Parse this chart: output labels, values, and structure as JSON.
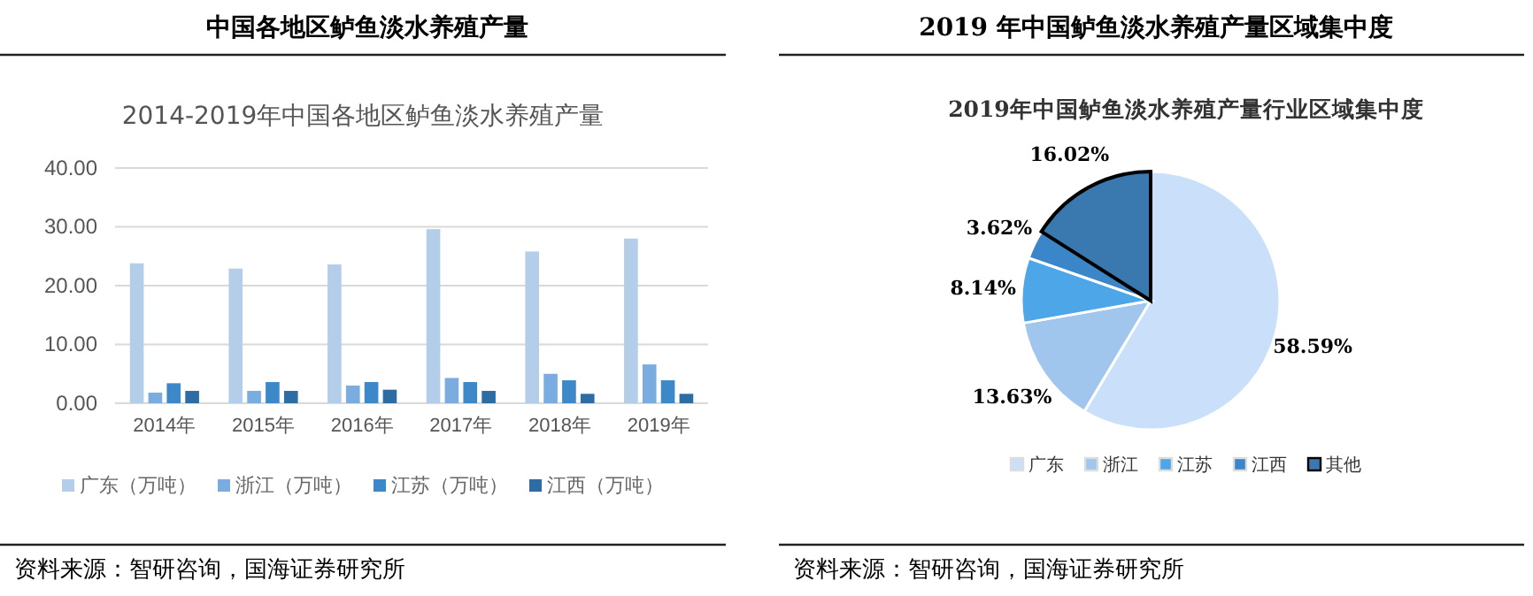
{
  "chart_data": [
    {
      "type": "bar",
      "title": "中国各地区鲈鱼淡水养殖产量",
      "subtitle": "2014-2019年中国各地区鲈鱼淡水养殖产量",
      "categories": [
        "2014年",
        "2015年",
        "2016年",
        "2017年",
        "2018年",
        "2019年"
      ],
      "series": [
        {
          "name": "广东（万吨）",
          "color": "#b4cde9",
          "values": [
            23.8,
            22.9,
            23.6,
            29.6,
            25.8,
            28.0
          ]
        },
        {
          "name": "浙江（万吨）",
          "color": "#7aacdf",
          "values": [
            1.8,
            2.1,
            3.0,
            4.3,
            5.0,
            6.6
          ]
        },
        {
          "name": "江苏（万吨）",
          "color": "#3d88c8",
          "values": [
            3.4,
            3.6,
            3.6,
            3.6,
            3.9,
            3.9
          ]
        },
        {
          "name": "江西（万吨）",
          "color": "#2e6da4",
          "values": [
            2.1,
            2.1,
            2.3,
            2.1,
            1.6,
            1.6
          ]
        }
      ],
      "ylim": [
        0,
        40
      ],
      "yticks": [
        {
          "value": 0,
          "label": "0.00"
        },
        {
          "value": 10,
          "label": "10.00"
        },
        {
          "value": 20,
          "label": "20.00"
        },
        {
          "value": 30,
          "label": "30.00"
        },
        {
          "value": 40,
          "label": "40.00"
        }
      ],
      "grid": "y",
      "legend": "bottom",
      "annotations": [
        "资料来源：智研咨询，国海证券研究所"
      ]
    },
    {
      "type": "pie",
      "title": "2019 年中国鲈鱼淡水养殖产量区域集中度",
      "subtitle": "2019年中国鲈鱼淡水养殖产量行业区域集中度",
      "categories": [
        "广东",
        "浙江",
        "江苏",
        "江西",
        "其他"
      ],
      "values": [
        58.59,
        13.63,
        8.14,
        3.62,
        16.02
      ],
      "colors": [
        "#c9dffa",
        "#a0c6ee",
        "#4da6e8",
        "#3b86c9",
        "#3a78b0"
      ],
      "value_labels": [
        "58.59%",
        "13.63%",
        "8.14%",
        "3.62%",
        "16.02%"
      ],
      "legend": "bottom",
      "annotations": [
        "资料来源：智研咨询，国海证券研究所"
      ]
    }
  ]
}
